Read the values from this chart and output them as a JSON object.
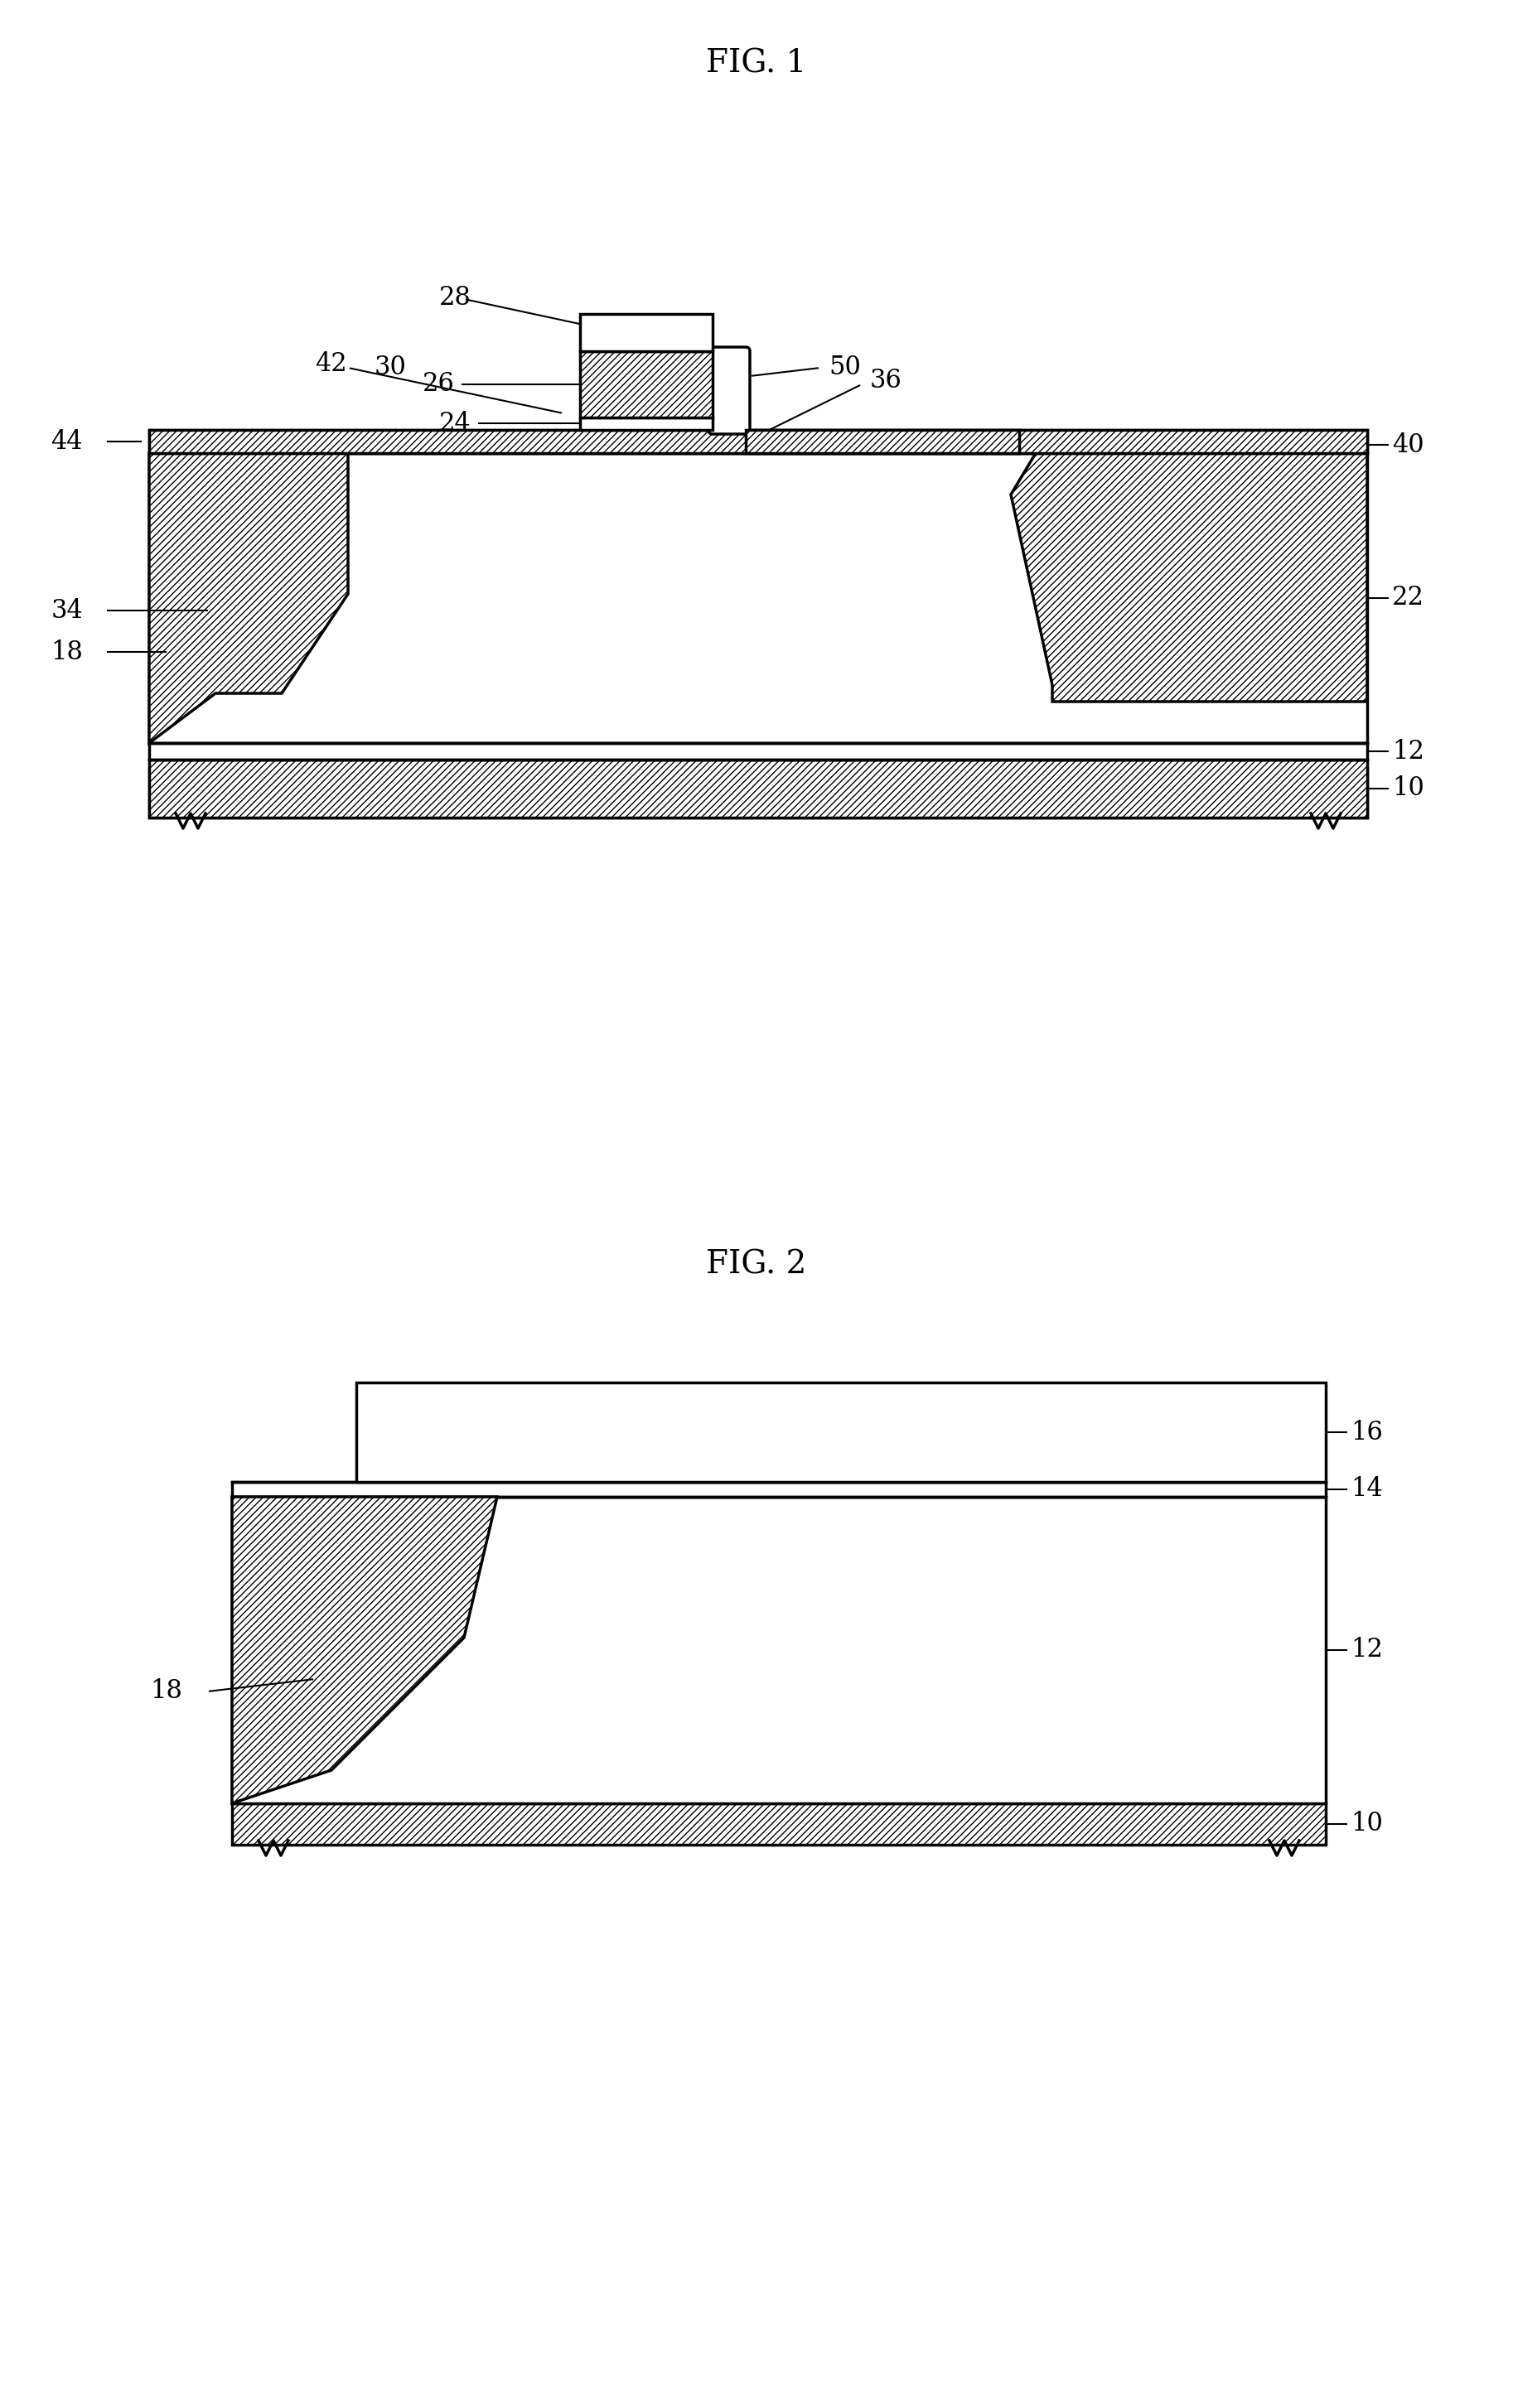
{
  "fig_title_1": "FIG. 1",
  "fig_title_2": "FIG. 2",
  "bg_color": "#ffffff",
  "line_color": "#000000",
  "hatch_color": "#000000",
  "hatch_pattern": "////",
  "title_fontsize": 28,
  "label_fontsize": 22
}
